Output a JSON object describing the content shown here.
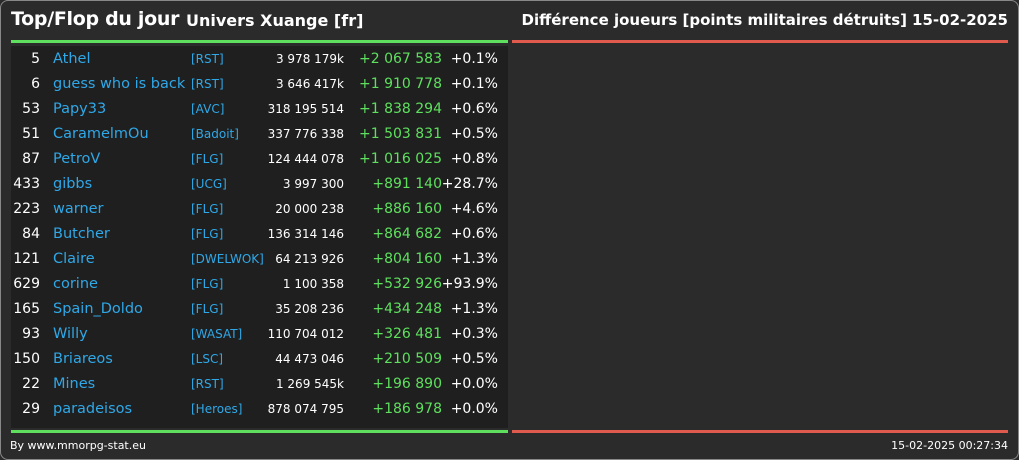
{
  "header": {
    "title": "Top/Flop du jour",
    "universe": "Univers Xuange [fr]",
    "metric": "Différence joueurs [points militaires détruits]",
    "date": "15-02-2025"
  },
  "colors": {
    "top_accent": "#5ee05e",
    "flop_accent": "#e05a4e",
    "link": "#2fa8e8"
  },
  "top_rows": [
    {
      "rank": "5",
      "name": "Athel",
      "alliance": "[RST]",
      "points": "3 978 179k",
      "diff": "+2 067 583",
      "pct": "+0.1%"
    },
    {
      "rank": "6",
      "name": "guess who is back",
      "alliance": "[RST]",
      "points": "3 646 417k",
      "diff": "+1 910 778",
      "pct": "+0.1%"
    },
    {
      "rank": "53",
      "name": "Papy33",
      "alliance": "[AVC]",
      "points": "318 195 514",
      "diff": "+1 838 294",
      "pct": "+0.6%"
    },
    {
      "rank": "51",
      "name": "CaramelmOu",
      "alliance": "[Badoit]",
      "points": "337 776 338",
      "diff": "+1 503 831",
      "pct": "+0.5%"
    },
    {
      "rank": "87",
      "name": "PetroV",
      "alliance": "[FLG]",
      "points": "124 444 078",
      "diff": "+1 016 025",
      "pct": "+0.8%"
    },
    {
      "rank": "433",
      "name": "gibbs",
      "alliance": "[UCG]",
      "points": "3 997 300",
      "diff": "+891 140",
      "pct": "+28.7%"
    },
    {
      "rank": "223",
      "name": "warner",
      "alliance": "[FLG]",
      "points": "20 000 238",
      "diff": "+886 160",
      "pct": "+4.6%"
    },
    {
      "rank": "84",
      "name": "Butcher",
      "alliance": "[FLG]",
      "points": "136 314 146",
      "diff": "+864 682",
      "pct": "+0.6%"
    },
    {
      "rank": "121",
      "name": "Claire",
      "alliance": "[DWELWOK]",
      "points": "64 213 926",
      "diff": "+804 160",
      "pct": "+1.3%"
    },
    {
      "rank": "629",
      "name": "corine",
      "alliance": "[FLG]",
      "points": "1 100 358",
      "diff": "+532 926",
      "pct": "+93.9%"
    },
    {
      "rank": "165",
      "name": "Spain_Doldo",
      "alliance": "[FLG]",
      "points": "35 208 236",
      "diff": "+434 248",
      "pct": "+1.3%"
    },
    {
      "rank": "93",
      "name": "Willy",
      "alliance": "[WASAT]",
      "points": "110 704 012",
      "diff": "+326 481",
      "pct": "+0.3%"
    },
    {
      "rank": "150",
      "name": "Briareos",
      "alliance": "[LSC]",
      "points": "44 473 046",
      "diff": "+210 509",
      "pct": "+0.5%"
    },
    {
      "rank": "22",
      "name": "Mines",
      "alliance": "[RST]",
      "points": "1 269 545k",
      "diff": "+196 890",
      "pct": "+0.0%"
    },
    {
      "rank": "29",
      "name": "paradeisos",
      "alliance": "[Heroes]",
      "points": "878 074 795",
      "diff": "+186 978",
      "pct": "+0.0%"
    }
  ],
  "flop_rows": [],
  "footer": {
    "source": "By www.mmorpg-stat.eu",
    "timestamp": "15-02-2025 00:27:34"
  }
}
